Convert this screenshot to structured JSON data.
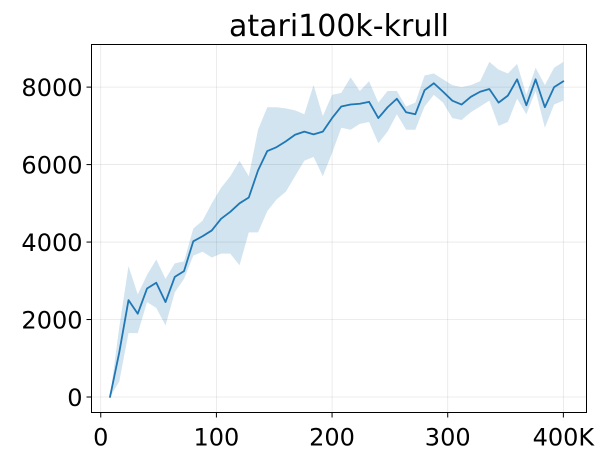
{
  "chart_data": {
    "type": "line",
    "title": "atari100k-krull",
    "xlabel": "",
    "ylabel": "",
    "xlim": [
      -8000,
      420000
    ],
    "ylim": [
      -400,
      9100
    ],
    "x_ticks": [
      0,
      100000,
      200000,
      300000,
      400000
    ],
    "x_tick_labels": [
      "0",
      "100",
      "200",
      "300",
      "400K"
    ],
    "y_ticks": [
      0,
      2000,
      4000,
      6000,
      8000
    ],
    "y_tick_labels": [
      "0",
      "2000",
      "4000",
      "6000",
      "8000"
    ],
    "grid": true,
    "colors": {
      "line": "#1f77b4",
      "band": "#1f77b4"
    },
    "series": [
      {
        "x": [
          8000,
          16000,
          24000,
          32000,
          40000,
          48000,
          56000,
          64000,
          72000,
          80000,
          88000,
          96000,
          104000,
          112000,
          120000,
          128000,
          136000,
          144000,
          152000,
          160000,
          168000,
          176000,
          184000,
          192000,
          200000,
          208000,
          216000,
          224000,
          232000,
          240000,
          248000,
          256000,
          264000,
          272000,
          280000,
          288000,
          296000,
          304000,
          312000,
          320000,
          328000,
          336000,
          344000,
          352000,
          360000,
          368000,
          376000,
          384000,
          392000,
          400000
        ],
        "y": [
          0,
          1150,
          2500,
          2150,
          2800,
          2950,
          2450,
          3100,
          3250,
          4020,
          4150,
          4300,
          4600,
          4780,
          5000,
          5150,
          5850,
          6350,
          6450,
          6600,
          6770,
          6850,
          6780,
          6850,
          7200,
          7500,
          7550,
          7570,
          7620,
          7200,
          7480,
          7700,
          7350,
          7300,
          7920,
          8100,
          7880,
          7650,
          7550,
          7750,
          7880,
          7950,
          7600,
          7780,
          8200,
          7530,
          8200,
          7480,
          8000,
          8150
        ],
        "lower": [
          0,
          400,
          1650,
          1650,
          2450,
          2300,
          1850,
          2700,
          3050,
          3650,
          3750,
          3600,
          3700,
          3700,
          3400,
          4250,
          4250,
          4800,
          5100,
          5300,
          5700,
          6100,
          6200,
          5700,
          6300,
          6950,
          6900,
          7050,
          7100,
          6550,
          6850,
          7300,
          6900,
          6900,
          7500,
          7800,
          7600,
          7200,
          7150,
          7350,
          7500,
          7650,
          7000,
          7100,
          7700,
          7300,
          7900,
          6950,
          7550,
          7650
        ],
        "upper": [
          0,
          1800,
          3380,
          2650,
          3150,
          3550,
          3050,
          3450,
          3500,
          4350,
          4550,
          5000,
          5400,
          5700,
          6100,
          5700,
          6900,
          7480,
          7480,
          7450,
          7400,
          7300,
          8050,
          7250,
          7800,
          7850,
          8250,
          7900,
          8150,
          7600,
          7900,
          7900,
          7500,
          7600,
          8300,
          8350,
          8200,
          8050,
          8000,
          8050,
          8150,
          8650,
          8450,
          8350,
          8600,
          7800,
          8500,
          8050,
          8500,
          8650
        ]
      }
    ]
  }
}
